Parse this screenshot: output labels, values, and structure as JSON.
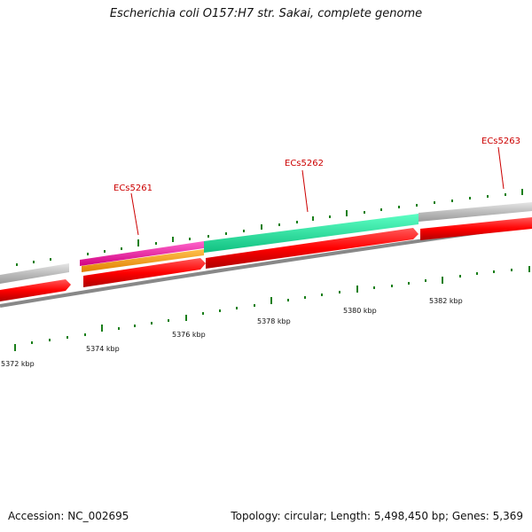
{
  "header": {
    "title": "Escherichia coli O157:H7 str. Sakai, complete genome"
  },
  "footer": {
    "accession": "Accession: NC_002695",
    "summary": "Topology: circular; Length: 5,498,450 bp; Genes: 5,369"
  },
  "genes": [
    {
      "name": "ECs5261"
    },
    {
      "name": "ECs5262"
    },
    {
      "name": "ECs5263"
    }
  ],
  "scale": {
    "labels": [
      "5372 kbp",
      "5374 kbp",
      "5376 kbp",
      "5378 kbp",
      "5380 kbp",
      "5382 kbp"
    ]
  },
  "colors": {
    "forward_cds": "#ff0000",
    "rna": "#ff1493",
    "orange_track": "#ff9900",
    "teal_track": "#1de9a0",
    "grey_track": "#bdbdbd",
    "backbone": "#7a7a7a",
    "tick_green": "#1a7f1a",
    "label_red": "#cc0000"
  }
}
